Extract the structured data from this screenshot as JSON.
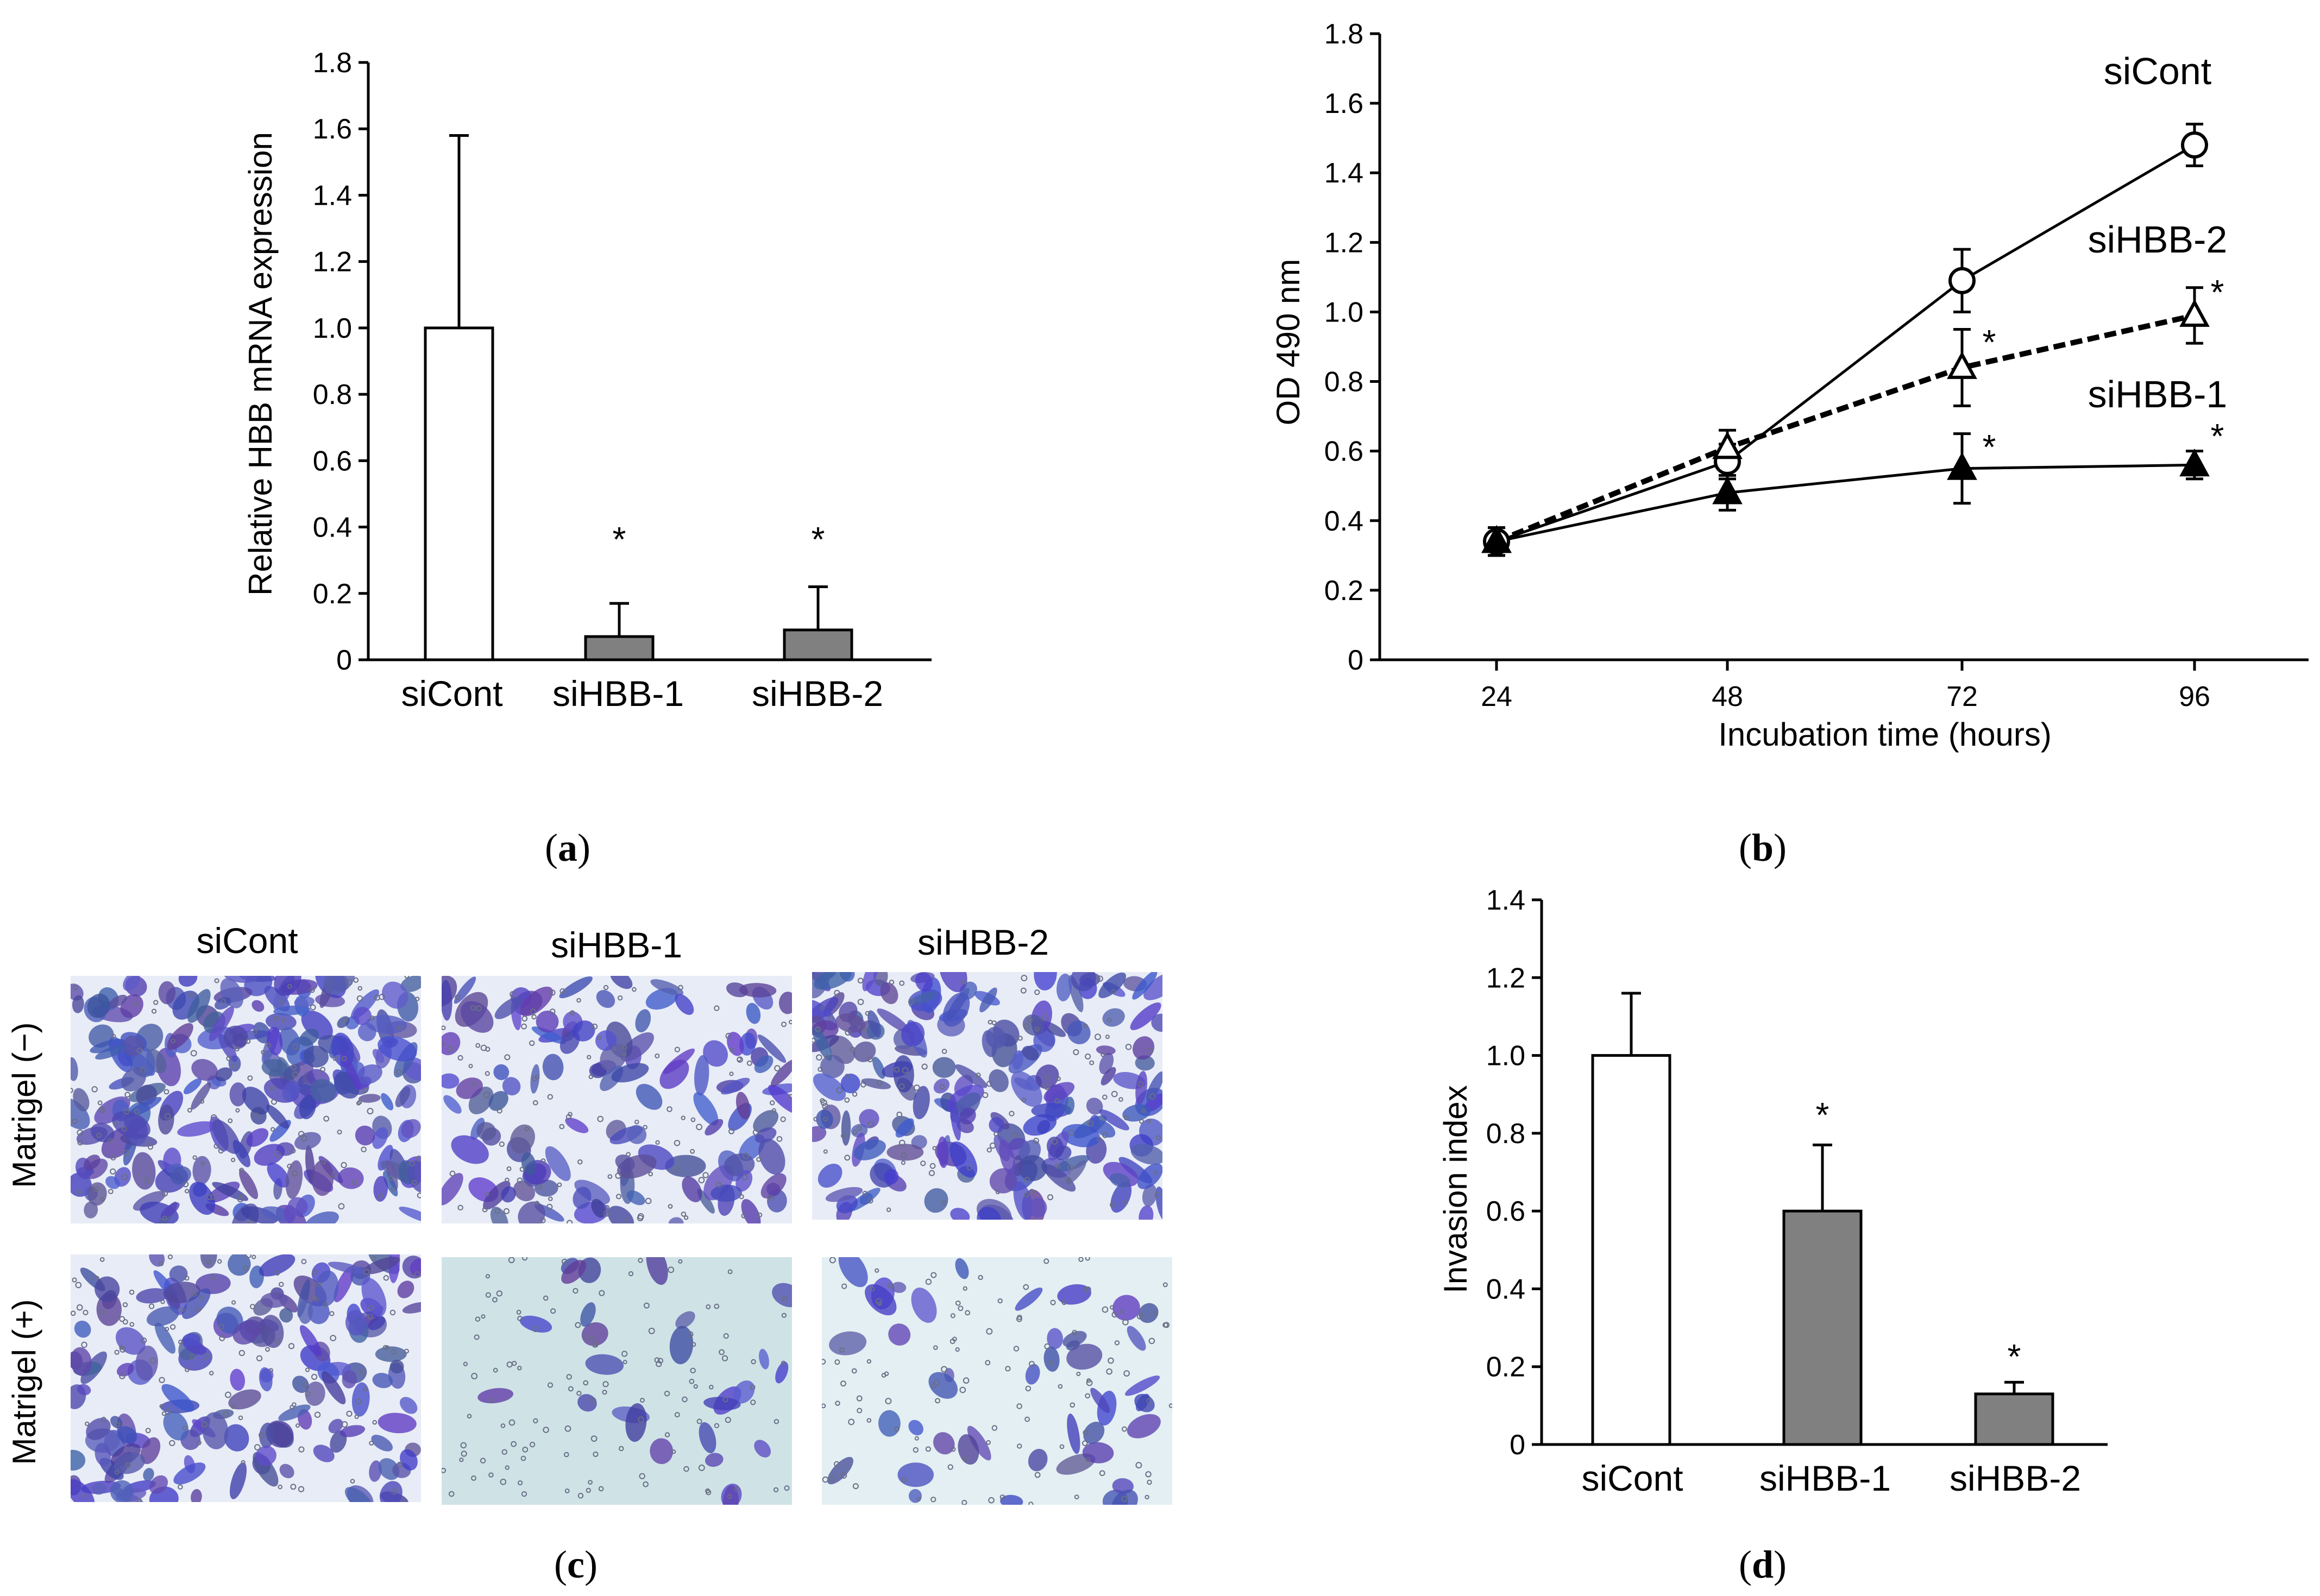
{
  "panels": {
    "a": "a",
    "b": "b",
    "c": "c",
    "d": "d"
  },
  "colors": {
    "control": "#ffffff",
    "knockdown": "#808080",
    "stroke": "#000000",
    "stain": "#4f4fc4"
  },
  "chart_data": [
    {
      "id": "a",
      "type": "bar",
      "title": "",
      "xlabel": "",
      "ylabel": "Relative HBB mRNA expression",
      "categories": [
        "siCont",
        "siHBB-1",
        "siHBB-2"
      ],
      "values": [
        1.0,
        0.07,
        0.09
      ],
      "errors": [
        0.58,
        0.1,
        0.13
      ],
      "significance": [
        "",
        "*",
        "*"
      ],
      "ylim": [
        0,
        1.8
      ],
      "yticks": [
        "0",
        "0.2",
        "0.4",
        "0.6",
        "0.8",
        "1.0",
        "1.2",
        "1.4",
        "1.6",
        "1.8"
      ],
      "ytick_values": [
        0,
        0.2,
        0.4,
        0.6,
        0.8,
        1.0,
        1.2,
        1.4,
        1.6,
        1.8
      ],
      "grid": false
    },
    {
      "id": "b",
      "type": "line",
      "xlabel": "Incubation time (hours)",
      "ylabel": "OD 490 nm",
      "x": [
        24,
        48,
        72,
        96
      ],
      "xticks": [
        "24",
        "48",
        "72",
        "96"
      ],
      "ylim": [
        0,
        1.8
      ],
      "yticks": [
        "0",
        "0.2",
        "0.4",
        "0.6",
        "0.8",
        "1.0",
        "1.2",
        "1.4",
        "1.6",
        "1.8"
      ],
      "ytick_values": [
        0,
        0.2,
        0.4,
        0.6,
        0.8,
        1.0,
        1.2,
        1.4,
        1.6,
        1.8
      ],
      "series": [
        {
          "name": "siCont",
          "marker": "open-circle",
          "line": "solid",
          "values": [
            0.34,
            0.57,
            1.09,
            1.48
          ],
          "errors": [
            0.04,
            0.05,
            0.09,
            0.06
          ],
          "significance": [
            "",
            "",
            "",
            ""
          ]
        },
        {
          "name": "siHBB-2",
          "marker": "open-triangle",
          "line": "dashed",
          "values": [
            0.34,
            0.61,
            0.84,
            0.99
          ],
          "errors": [
            0.04,
            0.05,
            0.11,
            0.08
          ],
          "significance": [
            "",
            "",
            "*",
            "*"
          ]
        },
        {
          "name": "siHBB-1",
          "marker": "filled-triangle",
          "line": "solid",
          "values": [
            0.34,
            0.48,
            0.55,
            0.56
          ],
          "errors": [
            0.04,
            0.05,
            0.1,
            0.04
          ],
          "significance": [
            "",
            "",
            "*",
            "*"
          ]
        }
      ],
      "grid": false
    },
    {
      "id": "d",
      "type": "bar",
      "xlabel": "",
      "ylabel": "Invasion index",
      "categories": [
        "siCont",
        "siHBB-1",
        "siHBB-2"
      ],
      "values": [
        1.0,
        0.6,
        0.13
      ],
      "errors": [
        0.16,
        0.17,
        0.03
      ],
      "significance": [
        "",
        "*",
        "*"
      ],
      "ylim": [
        0,
        1.4
      ],
      "yticks": [
        "0",
        "0.2",
        "0.4",
        "0.6",
        "0.8",
        "1.0",
        "1.2",
        "1.4"
      ],
      "ytick_values": [
        0,
        0.2,
        0.4,
        0.6,
        0.8,
        1.0,
        1.2,
        1.4
      ],
      "grid": false
    }
  ],
  "micrographs": {
    "columns": [
      "siCont",
      "siHBB-1",
      "siHBB-2"
    ],
    "rows": [
      "Matrigel (−)",
      "Matrigel (+)"
    ],
    "cell_density": [
      [
        1.0,
        0.55,
        0.85
      ],
      [
        0.7,
        0.12,
        0.2
      ]
    ]
  }
}
